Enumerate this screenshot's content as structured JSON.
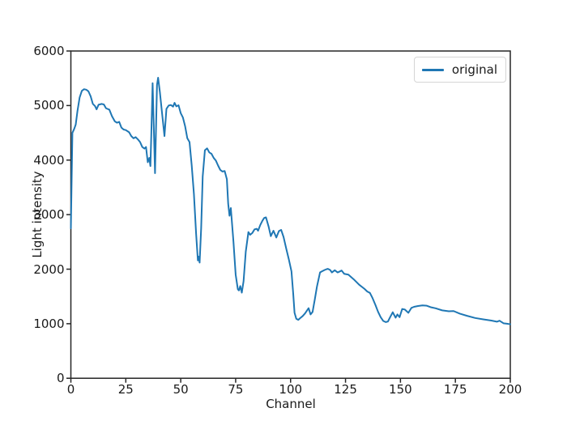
{
  "figure": {
    "background": "#ffffff"
  },
  "colors": {
    "line": "#1f77b4",
    "axis": "#262626",
    "text": "#1a1a1a",
    "legend_border": "#d5d5d5"
  },
  "chart_data": {
    "type": "line",
    "title": "",
    "xlabel": "Channel",
    "ylabel": "Light intensity",
    "xlim": [
      0,
      200
    ],
    "ylim": [
      0,
      6000
    ],
    "x_ticks": [
      0,
      25,
      50,
      75,
      100,
      125,
      150,
      175,
      200
    ],
    "y_ticks": [
      0,
      1000,
      2000,
      3000,
      4000,
      5000,
      6000
    ],
    "grid": false,
    "legend": {
      "position": "upper right",
      "entries": [
        {
          "label": "original",
          "color": "#1f77b4"
        }
      ]
    },
    "series": [
      {
        "name": "original",
        "color": "#1f77b4",
        "points": [
          [
            0,
            2750
          ],
          [
            0.7,
            4500
          ],
          [
            1.5,
            4570
          ],
          [
            2.2,
            4650
          ],
          [
            3,
            4900
          ],
          [
            4,
            5150
          ],
          [
            5,
            5270
          ],
          [
            6,
            5300
          ],
          [
            7,
            5290
          ],
          [
            8,
            5260
          ],
          [
            9,
            5170
          ],
          [
            10,
            5030
          ],
          [
            11,
            4990
          ],
          [
            11.7,
            4930
          ],
          [
            12.6,
            5015
          ],
          [
            14,
            5030
          ],
          [
            15,
            5020
          ],
          [
            16,
            4950
          ],
          [
            17.5,
            4925
          ],
          [
            18.7,
            4805
          ],
          [
            20,
            4710
          ],
          [
            21,
            4685
          ],
          [
            22,
            4700
          ],
          [
            23,
            4595
          ],
          [
            24,
            4560
          ],
          [
            25,
            4550
          ],
          [
            26.5,
            4510
          ],
          [
            27.5,
            4440
          ],
          [
            28.5,
            4400
          ],
          [
            29.5,
            4420
          ],
          [
            30.5,
            4380
          ],
          [
            31.5,
            4330
          ],
          [
            32.5,
            4240
          ],
          [
            33.5,
            4210
          ],
          [
            34.2,
            4240
          ],
          [
            35,
            3960
          ],
          [
            35.7,
            4040
          ],
          [
            36.2,
            3890
          ],
          [
            36.6,
            4460
          ],
          [
            37.2,
            5410
          ],
          [
            38.3,
            3760
          ],
          [
            39.2,
            5380
          ],
          [
            39.7,
            5510
          ],
          [
            40.5,
            5250
          ],
          [
            41.5,
            4860
          ],
          [
            42.6,
            4440
          ],
          [
            43.5,
            4940
          ],
          [
            44.5,
            5000
          ],
          [
            45.5,
            5010
          ],
          [
            46.5,
            4980
          ],
          [
            47.2,
            5050
          ],
          [
            48,
            4985
          ],
          [
            49,
            5005
          ],
          [
            50,
            4860
          ],
          [
            51,
            4780
          ],
          [
            52,
            4620
          ],
          [
            53,
            4400
          ],
          [
            54,
            4330
          ],
          [
            55,
            3900
          ],
          [
            56,
            3380
          ],
          [
            57,
            2650
          ],
          [
            57.8,
            2160
          ],
          [
            58.2,
            2230
          ],
          [
            58.6,
            2120
          ],
          [
            59.3,
            2750
          ],
          [
            60,
            3700
          ],
          [
            61,
            4180
          ],
          [
            62,
            4215
          ],
          [
            63,
            4140
          ],
          [
            64,
            4115
          ],
          [
            65,
            4040
          ],
          [
            66,
            3990
          ],
          [
            67,
            3900
          ],
          [
            68,
            3820
          ],
          [
            69,
            3790
          ],
          [
            70,
            3800
          ],
          [
            71,
            3650
          ],
          [
            71.6,
            3200
          ],
          [
            72.2,
            2980
          ],
          [
            72.8,
            3120
          ],
          [
            74,
            2500
          ],
          [
            75,
            1900
          ],
          [
            76,
            1630
          ],
          [
            76.5,
            1610
          ],
          [
            77.1,
            1690
          ],
          [
            77.8,
            1570
          ],
          [
            78.6,
            1780
          ],
          [
            79.6,
            2320
          ],
          [
            80.8,
            2680
          ],
          [
            81.6,
            2630
          ],
          [
            82.6,
            2665
          ],
          [
            83.6,
            2730
          ],
          [
            84.6,
            2740
          ],
          [
            85.2,
            2705
          ],
          [
            86.2,
            2810
          ],
          [
            87.2,
            2890
          ],
          [
            88,
            2940
          ],
          [
            88.8,
            2950
          ],
          [
            90,
            2780
          ],
          [
            91,
            2605
          ],
          [
            92.2,
            2705
          ],
          [
            93.5,
            2580
          ],
          [
            94.7,
            2700
          ],
          [
            95.7,
            2720
          ],
          [
            96.8,
            2590
          ],
          [
            98,
            2380
          ],
          [
            99.2,
            2180
          ],
          [
            100.4,
            1960
          ],
          [
            101.2,
            1550
          ],
          [
            101.8,
            1200
          ],
          [
            102.6,
            1090
          ],
          [
            103.5,
            1070
          ],
          [
            104.3,
            1100
          ],
          [
            105.5,
            1140
          ],
          [
            106.6,
            1190
          ],
          [
            107.6,
            1250
          ],
          [
            108.2,
            1285
          ],
          [
            109.1,
            1170
          ],
          [
            110,
            1215
          ],
          [
            111,
            1440
          ],
          [
            112,
            1680
          ],
          [
            113.4,
            1940
          ],
          [
            114.5,
            1965
          ],
          [
            115.5,
            1985
          ],
          [
            116.4,
            2000
          ],
          [
            117,
            2005
          ],
          [
            118,
            1985
          ],
          [
            118.8,
            1940
          ],
          [
            120.1,
            1980
          ],
          [
            121.4,
            1940
          ],
          [
            122.5,
            1960
          ],
          [
            123.2,
            1975
          ],
          [
            124.4,
            1915
          ],
          [
            126.3,
            1900
          ],
          [
            128.7,
            1815
          ],
          [
            131.2,
            1715
          ],
          [
            133.6,
            1640
          ],
          [
            134.9,
            1590
          ],
          [
            136.1,
            1565
          ],
          [
            137.3,
            1470
          ],
          [
            138.6,
            1345
          ],
          [
            139.8,
            1220
          ],
          [
            141,
            1120
          ],
          [
            142.2,
            1050
          ],
          [
            143.3,
            1030
          ],
          [
            144.3,
            1040
          ],
          [
            145.3,
            1120
          ],
          [
            146.5,
            1210
          ],
          [
            147.8,
            1110
          ],
          [
            148.6,
            1170
          ],
          [
            149.6,
            1120
          ],
          [
            150.8,
            1270
          ],
          [
            152,
            1260
          ],
          [
            153.6,
            1200
          ],
          [
            155,
            1290
          ],
          [
            156.2,
            1310
          ],
          [
            158,
            1325
          ],
          [
            160,
            1335
          ],
          [
            162,
            1330
          ],
          [
            164,
            1300
          ],
          [
            166,
            1283
          ],
          [
            169,
            1245
          ],
          [
            172,
            1228
          ],
          [
            174.2,
            1232
          ],
          [
            177,
            1185
          ],
          [
            180.3,
            1145
          ],
          [
            184,
            1105
          ],
          [
            187.7,
            1080
          ],
          [
            191.4,
            1057
          ],
          [
            193.9,
            1037
          ],
          [
            195.1,
            1055
          ],
          [
            196.9,
            1008
          ],
          [
            198.5,
            1000
          ],
          [
            200,
            990
          ]
        ]
      }
    ]
  }
}
